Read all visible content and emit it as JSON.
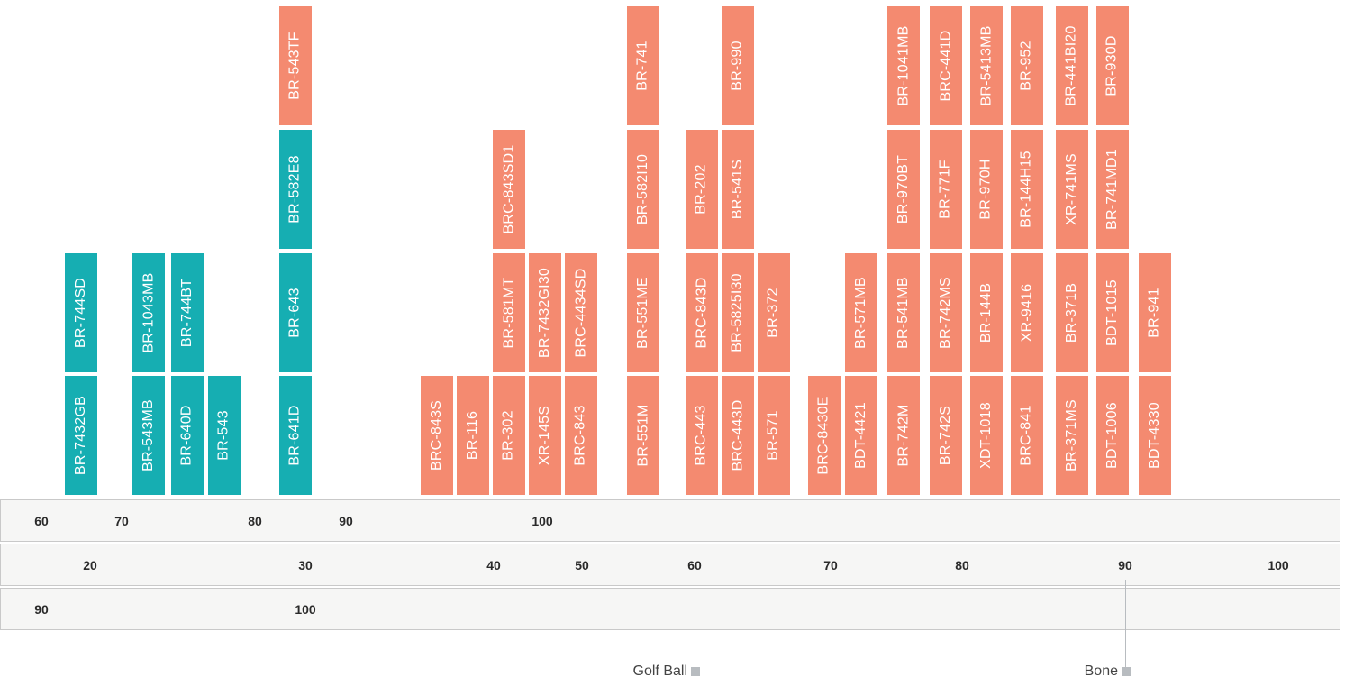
{
  "colors": {
    "teal": "#16aeb2",
    "salmon": "#f48a70",
    "row_bg": "#f6f6f5",
    "row_border": "#c9c9c9",
    "marker": "#b8bcc0"
  },
  "chart_data": {
    "type": "table",
    "tiles": [
      {
        "col": 0,
        "level": 0,
        "label": "BR-7432GB",
        "color": "teal"
      },
      {
        "col": 0,
        "level": 1,
        "label": "BR-744SD",
        "color": "teal"
      },
      {
        "col": 1,
        "level": 0,
        "label": "BR-543MB",
        "color": "teal"
      },
      {
        "col": 1,
        "level": 1,
        "label": "BR-1043MB",
        "color": "teal"
      },
      {
        "col": 2,
        "level": 0,
        "label": "BR-640D",
        "color": "teal"
      },
      {
        "col": 2,
        "level": 1,
        "label": "BR-744BT",
        "color": "teal"
      },
      {
        "col": 3,
        "level": 0,
        "label": "BR-543",
        "color": "teal"
      },
      {
        "col": 4,
        "level": 0,
        "label": "BR-641D",
        "color": "teal"
      },
      {
        "col": 4,
        "level": 1,
        "label": "BR-643",
        "color": "teal"
      },
      {
        "col": 4,
        "level": 2,
        "label": "BR-582E8",
        "color": "teal"
      },
      {
        "col": 4,
        "level": 3,
        "label": "BR-543TF",
        "color": "salmon"
      },
      {
        "col": 5,
        "level": 0,
        "label": "BRC-843S",
        "color": "salmon"
      },
      {
        "col": 6,
        "level": 0,
        "label": "BR-116",
        "color": "salmon"
      },
      {
        "col": 7,
        "level": 0,
        "label": "BR-302",
        "color": "salmon"
      },
      {
        "col": 7,
        "level": 1,
        "label": "BR-581MT",
        "color": "salmon"
      },
      {
        "col": 7,
        "level": 2,
        "label": "BRC-843SD1",
        "color": "salmon"
      },
      {
        "col": 8,
        "level": 0,
        "label": "XR-145S",
        "color": "salmon"
      },
      {
        "col": 8,
        "level": 1,
        "label": "BR-7432GI30",
        "color": "salmon"
      },
      {
        "col": 9,
        "level": 0,
        "label": "BRC-843",
        "color": "salmon"
      },
      {
        "col": 9,
        "level": 1,
        "label": "BRC-4434SD",
        "color": "salmon"
      },
      {
        "col": 10,
        "level": 0,
        "label": "BR-551M",
        "color": "salmon"
      },
      {
        "col": 10,
        "level": 1,
        "label": "BR-551ME",
        "color": "salmon"
      },
      {
        "col": 10,
        "level": 2,
        "label": "BR-582I10",
        "color": "salmon"
      },
      {
        "col": 10,
        "level": 3,
        "label": "BR-741",
        "color": "salmon"
      },
      {
        "col": 11,
        "level": 0,
        "label": "BRC-443",
        "color": "salmon"
      },
      {
        "col": 11,
        "level": 1,
        "label": "BRC-843D",
        "color": "salmon"
      },
      {
        "col": 11,
        "level": 2,
        "label": "BR-202",
        "color": "salmon"
      },
      {
        "col": 12,
        "level": 0,
        "label": "BRC-443D",
        "color": "salmon"
      },
      {
        "col": 12,
        "level": 1,
        "label": "BR-5825I30",
        "color": "salmon"
      },
      {
        "col": 12,
        "level": 2,
        "label": "BR-541S",
        "color": "salmon"
      },
      {
        "col": 12,
        "level": 3,
        "label": "BR-990",
        "color": "salmon"
      },
      {
        "col": 13,
        "level": 0,
        "label": "BR-571",
        "color": "salmon"
      },
      {
        "col": 13,
        "level": 1,
        "label": "BR-372",
        "color": "salmon"
      },
      {
        "col": 14,
        "level": 0,
        "label": "BRC-8430E",
        "color": "salmon"
      },
      {
        "col": 15,
        "level": 0,
        "label": "BDT-4421",
        "color": "salmon"
      },
      {
        "col": 15,
        "level": 1,
        "label": "BR-571MB",
        "color": "salmon"
      },
      {
        "col": 16,
        "level": 0,
        "label": "BR-742M",
        "color": "salmon"
      },
      {
        "col": 16,
        "level": 1,
        "label": "BR-541MB",
        "color": "salmon"
      },
      {
        "col": 16,
        "level": 2,
        "label": "BR-970BT",
        "color": "salmon"
      },
      {
        "col": 16,
        "level": 3,
        "label": "BR-1041MB",
        "color": "salmon"
      },
      {
        "col": 17,
        "level": 0,
        "label": "BR-742S",
        "color": "salmon"
      },
      {
        "col": 17,
        "level": 1,
        "label": "BR-742MS",
        "color": "salmon"
      },
      {
        "col": 17,
        "level": 2,
        "label": "BR-771F",
        "color": "salmon"
      },
      {
        "col": 17,
        "level": 3,
        "label": "BRC-441D",
        "color": "salmon"
      },
      {
        "col": 18,
        "level": 0,
        "label": "XDT-1018",
        "color": "salmon"
      },
      {
        "col": 18,
        "level": 1,
        "label": "BR-144B",
        "color": "salmon"
      },
      {
        "col": 18,
        "level": 2,
        "label": "BR-970H",
        "color": "salmon"
      },
      {
        "col": 18,
        "level": 3,
        "label": "BR-5413MB",
        "color": "salmon"
      },
      {
        "col": 19,
        "level": 0,
        "label": "BRC-841",
        "color": "salmon"
      },
      {
        "col": 19,
        "level": 1,
        "label": "XR-9416",
        "color": "salmon"
      },
      {
        "col": 19,
        "level": 2,
        "label": "BR-144H15",
        "color": "salmon"
      },
      {
        "col": 19,
        "level": 3,
        "label": "BR-952",
        "color": "salmon"
      },
      {
        "col": 20,
        "level": 0,
        "label": "BR-371MS",
        "color": "salmon"
      },
      {
        "col": 20,
        "level": 1,
        "label": "BR-371B",
        "color": "salmon"
      },
      {
        "col": 20,
        "level": 2,
        "label": "XR-741MS",
        "color": "salmon"
      },
      {
        "col": 20,
        "level": 3,
        "label": "BR-441BI20",
        "color": "salmon"
      },
      {
        "col": 21,
        "level": 0,
        "label": "BDT-1006",
        "color": "salmon"
      },
      {
        "col": 21,
        "level": 1,
        "label": "BDT-1015",
        "color": "salmon"
      },
      {
        "col": 21,
        "level": 2,
        "label": "BR-741MD1",
        "color": "salmon"
      },
      {
        "col": 21,
        "level": 3,
        "label": "BR-930D",
        "color": "salmon"
      },
      {
        "col": 22,
        "level": 0,
        "label": "BDT-4330",
        "color": "salmon"
      },
      {
        "col": 22,
        "level": 1,
        "label": "BR-941",
        "color": "salmon"
      }
    ],
    "scales": [
      {
        "ticks": [
          "60",
          "70",
          "80",
          "90",
          "100"
        ]
      },
      {
        "ticks": [
          "20",
          "30",
          "40",
          "50",
          "60",
          "70",
          "80",
          "90",
          "100"
        ]
      },
      {
        "ticks": [
          "90",
          "100"
        ]
      }
    ],
    "markers": [
      {
        "label": "Golf Ball",
        "scale": 1,
        "tick": "60"
      },
      {
        "label": "Bone",
        "scale": 1,
        "tick": "90"
      }
    ]
  }
}
